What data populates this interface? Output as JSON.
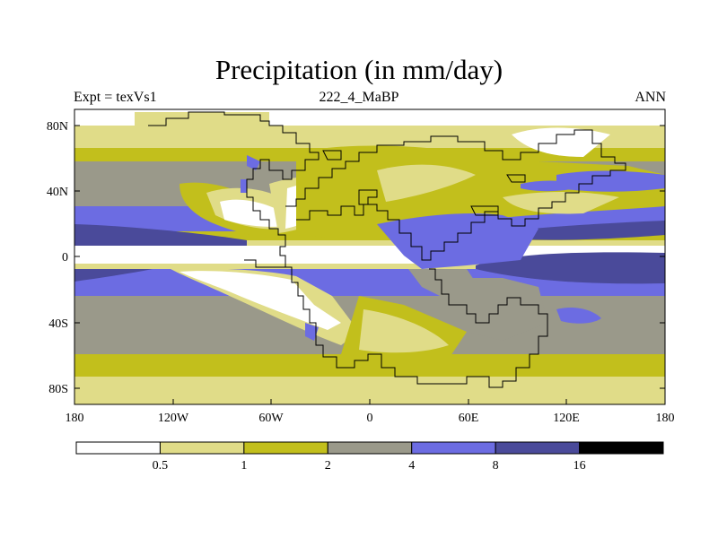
{
  "chart_data": {
    "type": "heatmap",
    "title": "Precipitation (in mm/day)",
    "left_string": "Expt = texVs1",
    "center_string": "222_4_MaBP",
    "right_string": "ANN",
    "x_ticks": [
      "180",
      "120W",
      "60W",
      "0",
      "60E",
      "120E",
      "180"
    ],
    "y_ticks": [
      "80N",
      "40N",
      "0",
      "40S",
      "80S"
    ],
    "x_range": [
      -180,
      180
    ],
    "y_range": [
      -90,
      90
    ],
    "colorbar": {
      "levels": [
        "0.5",
        "1",
        "2",
        "4",
        "8",
        "16"
      ],
      "colors": [
        "#ffffff",
        "#e0dc88",
        "#c2bf1c",
        "#9a998a",
        "#6c6ce2",
        "#4a4a9a",
        "#000000"
      ]
    }
  }
}
